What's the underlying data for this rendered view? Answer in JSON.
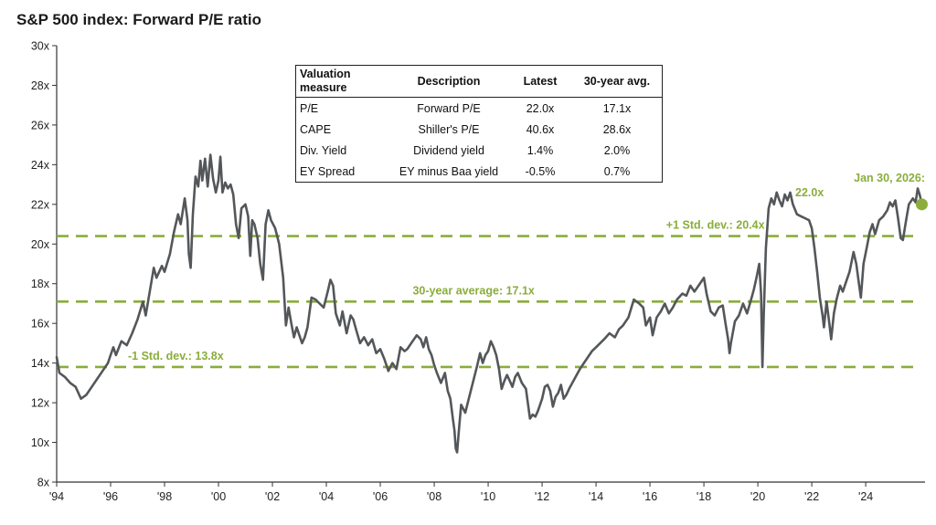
{
  "colors": {
    "line": "#54575a",
    "accent": "#8aad3b",
    "axis": "#333333"
  },
  "chart_data": {
    "type": "line",
    "title": "S&P 500 index: Forward P/E ratio",
    "ylim": [
      8,
      30
    ],
    "xlim": [
      1994,
      2026.2
    ],
    "y_ticks": [
      8,
      10,
      12,
      14,
      16,
      18,
      20,
      22,
      24,
      26,
      28,
      30
    ],
    "y_tick_labels": [
      "8x",
      "10x",
      "12x",
      "14x",
      "16x",
      "18x",
      "20x",
      "22x",
      "24x",
      "26x",
      "28x",
      "30x"
    ],
    "x_ticks": [
      1994,
      1996,
      1998,
      2000,
      2002,
      2004,
      2006,
      2008,
      2010,
      2012,
      2014,
      2016,
      2018,
      2020,
      2022,
      2024
    ],
    "x_tick_labels": [
      "'94",
      "'96",
      "'98",
      "'00",
      "'02",
      "'04",
      "'06",
      "'08",
      "'10",
      "'12",
      "'14",
      "'16",
      "'18",
      "'20",
      "'22",
      "'24"
    ],
    "reference_lines": [
      {
        "label": "+1 Std. dev.: 20.4x",
        "value": 20.4
      },
      {
        "label": "30-year average: 17.1x",
        "value": 17.1
      },
      {
        "label": "-1 Std. dev.: 13.8x",
        "value": 13.8
      }
    ],
    "annotation": {
      "lines": [
        "Jan 30, 2026:",
        "22.0x"
      ],
      "x": 2026.08,
      "y": 22.0
    },
    "series": [
      {
        "values": [
          [
            1994.0,
            14.3
          ],
          [
            1994.1,
            13.5
          ],
          [
            1994.3,
            13.3
          ],
          [
            1994.5,
            13.0
          ],
          [
            1994.7,
            12.8
          ],
          [
            1994.9,
            12.2
          ],
          [
            1995.1,
            12.4
          ],
          [
            1995.3,
            12.8
          ],
          [
            1995.5,
            13.2
          ],
          [
            1995.7,
            13.6
          ],
          [
            1995.9,
            14.0
          ],
          [
            1996.0,
            14.4
          ],
          [
            1996.1,
            14.8
          ],
          [
            1996.2,
            14.4
          ],
          [
            1996.4,
            15.1
          ],
          [
            1996.6,
            14.9
          ],
          [
            1996.8,
            15.5
          ],
          [
            1997.0,
            16.2
          ],
          [
            1997.2,
            17.1
          ],
          [
            1997.3,
            16.4
          ],
          [
            1997.5,
            18.0
          ],
          [
            1997.6,
            18.8
          ],
          [
            1997.7,
            18.3
          ],
          [
            1997.9,
            18.9
          ],
          [
            1998.0,
            18.6
          ],
          [
            1998.2,
            19.5
          ],
          [
            1998.35,
            20.6
          ],
          [
            1998.5,
            21.5
          ],
          [
            1998.6,
            21.0
          ],
          [
            1998.75,
            22.3
          ],
          [
            1998.85,
            21.2
          ],
          [
            1998.9,
            19.5
          ],
          [
            1998.97,
            18.8
          ],
          [
            1999.05,
            21.5
          ],
          [
            1999.15,
            23.4
          ],
          [
            1999.25,
            22.9
          ],
          [
            1999.33,
            24.2
          ],
          [
            1999.4,
            23.2
          ],
          [
            1999.5,
            24.3
          ],
          [
            1999.6,
            22.9
          ],
          [
            1999.7,
            24.5
          ],
          [
            1999.8,
            23.3
          ],
          [
            1999.9,
            22.6
          ],
          [
            2000.0,
            23.2
          ],
          [
            2000.07,
            24.4
          ],
          [
            2000.15,
            22.6
          ],
          [
            2000.25,
            23.1
          ],
          [
            2000.35,
            22.8
          ],
          [
            2000.45,
            23.0
          ],
          [
            2000.55,
            22.5
          ],
          [
            2000.65,
            21.0
          ],
          [
            2000.75,
            20.3
          ],
          [
            2000.85,
            21.8
          ],
          [
            2001.0,
            22.0
          ],
          [
            2001.1,
            21.4
          ],
          [
            2001.18,
            19.4
          ],
          [
            2001.25,
            21.2
          ],
          [
            2001.33,
            21.0
          ],
          [
            2001.45,
            20.3
          ],
          [
            2001.55,
            19.0
          ],
          [
            2001.65,
            18.2
          ],
          [
            2001.75,
            21.0
          ],
          [
            2001.85,
            21.7
          ],
          [
            2001.95,
            21.2
          ],
          [
            2002.1,
            20.8
          ],
          [
            2002.25,
            20.0
          ],
          [
            2002.4,
            18.3
          ],
          [
            2002.5,
            15.9
          ],
          [
            2002.6,
            16.8
          ],
          [
            2002.7,
            16.0
          ],
          [
            2002.8,
            15.3
          ],
          [
            2002.9,
            15.8
          ],
          [
            2003.0,
            15.4
          ],
          [
            2003.1,
            15.0
          ],
          [
            2003.2,
            15.3
          ],
          [
            2003.3,
            15.8
          ],
          [
            2003.45,
            17.3
          ],
          [
            2003.6,
            17.2
          ],
          [
            2003.75,
            17.0
          ],
          [
            2003.9,
            16.8
          ],
          [
            2004.05,
            17.6
          ],
          [
            2004.15,
            18.2
          ],
          [
            2004.25,
            17.9
          ],
          [
            2004.35,
            16.5
          ],
          [
            2004.5,
            15.9
          ],
          [
            2004.6,
            16.6
          ],
          [
            2004.75,
            15.5
          ],
          [
            2004.9,
            16.4
          ],
          [
            2005.0,
            16.2
          ],
          [
            2005.1,
            15.7
          ],
          [
            2005.25,
            15.0
          ],
          [
            2005.4,
            15.3
          ],
          [
            2005.55,
            14.9
          ],
          [
            2005.7,
            15.2
          ],
          [
            2005.85,
            14.5
          ],
          [
            2006.0,
            14.7
          ],
          [
            2006.15,
            14.2
          ],
          [
            2006.3,
            13.6
          ],
          [
            2006.45,
            14.0
          ],
          [
            2006.6,
            13.7
          ],
          [
            2006.75,
            14.8
          ],
          [
            2006.9,
            14.6
          ],
          [
            2007.0,
            14.7
          ],
          [
            2007.2,
            15.1
          ],
          [
            2007.35,
            15.4
          ],
          [
            2007.5,
            15.2
          ],
          [
            2007.6,
            14.8
          ],
          [
            2007.7,
            15.3
          ],
          [
            2007.8,
            14.7
          ],
          [
            2007.9,
            14.4
          ],
          [
            2008.0,
            13.9
          ],
          [
            2008.1,
            13.5
          ],
          [
            2008.25,
            13.0
          ],
          [
            2008.4,
            13.5
          ],
          [
            2008.5,
            12.6
          ],
          [
            2008.6,
            12.2
          ],
          [
            2008.7,
            11.1
          ],
          [
            2008.75,
            10.6
          ],
          [
            2008.8,
            9.7
          ],
          [
            2008.85,
            9.5
          ],
          [
            2008.92,
            10.7
          ],
          [
            2009.0,
            11.9
          ],
          [
            2009.15,
            11.5
          ],
          [
            2009.3,
            12.3
          ],
          [
            2009.45,
            13.1
          ],
          [
            2009.6,
            13.9
          ],
          [
            2009.7,
            14.5
          ],
          [
            2009.8,
            14.0
          ],
          [
            2009.9,
            14.4
          ],
          [
            2010.0,
            14.6
          ],
          [
            2010.1,
            15.1
          ],
          [
            2010.2,
            14.8
          ],
          [
            2010.3,
            14.4
          ],
          [
            2010.4,
            13.7
          ],
          [
            2010.5,
            12.7
          ],
          [
            2010.6,
            13.1
          ],
          [
            2010.7,
            13.4
          ],
          [
            2010.8,
            13.1
          ],
          [
            2010.9,
            12.8
          ],
          [
            2011.0,
            13.3
          ],
          [
            2011.1,
            13.5
          ],
          [
            2011.25,
            13.0
          ],
          [
            2011.4,
            12.7
          ],
          [
            2011.55,
            11.2
          ],
          [
            2011.65,
            11.4
          ],
          [
            2011.75,
            11.3
          ],
          [
            2011.85,
            11.6
          ],
          [
            2012.0,
            12.2
          ],
          [
            2012.1,
            12.8
          ],
          [
            2012.2,
            12.9
          ],
          [
            2012.3,
            12.6
          ],
          [
            2012.4,
            11.8
          ],
          [
            2012.5,
            12.3
          ],
          [
            2012.6,
            12.5
          ],
          [
            2012.7,
            12.9
          ],
          [
            2012.8,
            12.2
          ],
          [
            2012.9,
            12.4
          ],
          [
            2013.0,
            12.7
          ],
          [
            2013.2,
            13.2
          ],
          [
            2013.4,
            13.7
          ],
          [
            2013.55,
            14.0
          ],
          [
            2013.7,
            14.3
          ],
          [
            2013.85,
            14.6
          ],
          [
            2014.0,
            14.8
          ],
          [
            2014.15,
            15.0
          ],
          [
            2014.3,
            15.2
          ],
          [
            2014.5,
            15.5
          ],
          [
            2014.7,
            15.3
          ],
          [
            2014.85,
            15.7
          ],
          [
            2015.0,
            15.9
          ],
          [
            2015.2,
            16.3
          ],
          [
            2015.4,
            17.2
          ],
          [
            2015.6,
            17.0
          ],
          [
            2015.75,
            16.8
          ],
          [
            2015.85,
            15.9
          ],
          [
            2016.0,
            16.3
          ],
          [
            2016.1,
            15.4
          ],
          [
            2016.25,
            16.3
          ],
          [
            2016.4,
            16.6
          ],
          [
            2016.55,
            17.0
          ],
          [
            2016.7,
            16.5
          ],
          [
            2016.85,
            16.8
          ],
          [
            2017.0,
            17.2
          ],
          [
            2017.2,
            17.5
          ],
          [
            2017.35,
            17.4
          ],
          [
            2017.5,
            17.9
          ],
          [
            2017.65,
            17.6
          ],
          [
            2017.8,
            17.9
          ],
          [
            2017.9,
            18.1
          ],
          [
            2018.0,
            18.3
          ],
          [
            2018.1,
            17.5
          ],
          [
            2018.25,
            16.6
          ],
          [
            2018.4,
            16.4
          ],
          [
            2018.55,
            16.8
          ],
          [
            2018.7,
            16.9
          ],
          [
            2018.8,
            16.0
          ],
          [
            2018.9,
            15.2
          ],
          [
            2018.95,
            14.5
          ],
          [
            2019.0,
            15.0
          ],
          [
            2019.15,
            16.1
          ],
          [
            2019.3,
            16.4
          ],
          [
            2019.45,
            17.0
          ],
          [
            2019.6,
            16.5
          ],
          [
            2019.75,
            17.2
          ],
          [
            2019.85,
            17.7
          ],
          [
            2019.95,
            18.3
          ],
          [
            2020.05,
            19.0
          ],
          [
            2020.12,
            17.5
          ],
          [
            2020.17,
            13.8
          ],
          [
            2020.22,
            16.5
          ],
          [
            2020.3,
            19.8
          ],
          [
            2020.4,
            21.8
          ],
          [
            2020.5,
            22.3
          ],
          [
            2020.6,
            22.0
          ],
          [
            2020.7,
            22.6
          ],
          [
            2020.8,
            22.2
          ],
          [
            2020.9,
            21.9
          ],
          [
            2021.0,
            22.5
          ],
          [
            2021.1,
            22.2
          ],
          [
            2021.2,
            22.6
          ],
          [
            2021.3,
            22.0
          ],
          [
            2021.45,
            21.5
          ],
          [
            2021.6,
            21.4
          ],
          [
            2021.75,
            21.3
          ],
          [
            2021.9,
            21.2
          ],
          [
            2022.0,
            20.8
          ],
          [
            2022.1,
            19.8
          ],
          [
            2022.2,
            18.6
          ],
          [
            2022.3,
            17.3
          ],
          [
            2022.4,
            16.4
          ],
          [
            2022.45,
            15.8
          ],
          [
            2022.55,
            17.1
          ],
          [
            2022.65,
            16.0
          ],
          [
            2022.72,
            15.2
          ],
          [
            2022.82,
            16.5
          ],
          [
            2022.92,
            17.2
          ],
          [
            2023.05,
            17.9
          ],
          [
            2023.15,
            17.6
          ],
          [
            2023.3,
            18.2
          ],
          [
            2023.4,
            18.6
          ],
          [
            2023.55,
            19.6
          ],
          [
            2023.65,
            19.0
          ],
          [
            2023.75,
            18.0
          ],
          [
            2023.82,
            17.3
          ],
          [
            2023.92,
            19.0
          ],
          [
            2024.05,
            19.9
          ],
          [
            2024.15,
            20.6
          ],
          [
            2024.25,
            21.0
          ],
          [
            2024.35,
            20.5
          ],
          [
            2024.5,
            21.2
          ],
          [
            2024.65,
            21.4
          ],
          [
            2024.8,
            21.7
          ],
          [
            2024.9,
            22.1
          ],
          [
            2025.0,
            21.9
          ],
          [
            2025.1,
            22.2
          ],
          [
            2025.2,
            21.3
          ],
          [
            2025.3,
            20.3
          ],
          [
            2025.38,
            20.2
          ],
          [
            2025.5,
            21.2
          ],
          [
            2025.6,
            22.0
          ],
          [
            2025.75,
            22.3
          ],
          [
            2025.85,
            22.1
          ],
          [
            2025.93,
            22.8
          ],
          [
            2026.0,
            22.5
          ],
          [
            2026.08,
            22.0
          ]
        ]
      }
    ]
  },
  "table": {
    "headers": [
      "Valuation measure",
      "Description",
      "Latest",
      "30-year avg."
    ],
    "rows": [
      [
        "P/E",
        "Forward P/E",
        "22.0x",
        "17.1x"
      ],
      [
        "CAPE",
        "Shiller's P/E",
        "40.6x",
        "28.6x"
      ],
      [
        "Div. Yield",
        "Dividend yield",
        "1.4%",
        "2.0%"
      ],
      [
        "EY Spread",
        "EY minus Baa yield",
        "-0.5%",
        "0.7%"
      ]
    ]
  }
}
